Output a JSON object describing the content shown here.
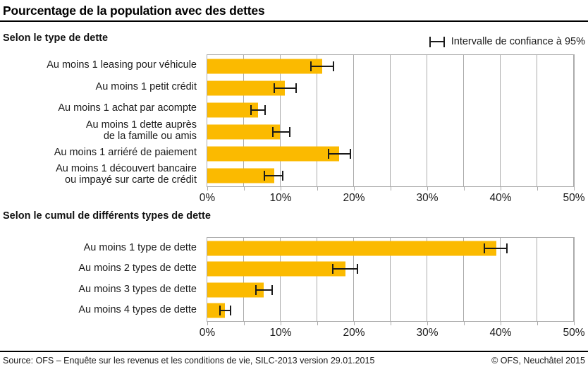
{
  "header": {
    "title": "Pourcentage de la population avec des dettes"
  },
  "legend": {
    "label": "Intervalle de confiance à 95%"
  },
  "colors": {
    "bar": "#FBBA00",
    "grid": "#ABABAB",
    "error_bar": "#1A1A1A"
  },
  "chart_data": [
    {
      "type": "bar",
      "orientation": "horizontal",
      "title": "Selon le type de dette",
      "categories": [
        "Au moins 1 leasing pour véhicule",
        "Au moins 1 petit crédit",
        "Au moins 1 achat par acompte",
        "Au moins 1 dette auprès\nde la famille ou amis",
        "Au moins 1 arriéré de paiement",
        "Au moins 1 découvert bancaire\nou impayé sur carte de crédit"
      ],
      "values": [
        15.7,
        10.6,
        6.9,
        9.9,
        18.0,
        9.1
      ],
      "ci_low": [
        14.0,
        9.0,
        5.9,
        8.8,
        16.4,
        7.7
      ],
      "ci_high": [
        17.3,
        12.2,
        8.0,
        11.3,
        19.6,
        10.4
      ],
      "unit": "%",
      "xlim": [
        0,
        50
      ],
      "xticks": [
        0,
        10,
        20,
        30,
        40,
        50
      ],
      "xtick_labels": [
        "0%",
        "10%",
        "20%",
        "30%",
        "40%",
        "50%"
      ],
      "minor_tick_step": 5,
      "grid": true,
      "legend": "Intervalle de confiance à 95%"
    },
    {
      "type": "bar",
      "orientation": "horizontal",
      "title": "Selon le cumul de différents types de dette",
      "categories": [
        "Au moins 1 type de dette",
        "Au moins 2 types de dette",
        "Au moins 3 types de dette",
        "Au moins 4 types de dette"
      ],
      "values": [
        39.4,
        18.8,
        7.7,
        2.4
      ],
      "ci_low": [
        37.7,
        17.0,
        6.5,
        1.6
      ],
      "ci_high": [
        41.0,
        20.6,
        8.9,
        3.3
      ],
      "unit": "%",
      "xlim": [
        0,
        50
      ],
      "xticks": [
        0,
        10,
        20,
        30,
        40,
        50
      ],
      "xtick_labels": [
        "0%",
        "10%",
        "20%",
        "30%",
        "40%",
        "50%"
      ],
      "minor_tick_step": 5,
      "grid": true,
      "legend": "Intervalle de confiance à 95%"
    }
  ],
  "footer": {
    "source": "Source: OFS – Enquête sur les revenus et les conditions de vie, SILC-2013 version 29.01.2015",
    "copyright": "© OFS, Neuchâtel 2015"
  }
}
